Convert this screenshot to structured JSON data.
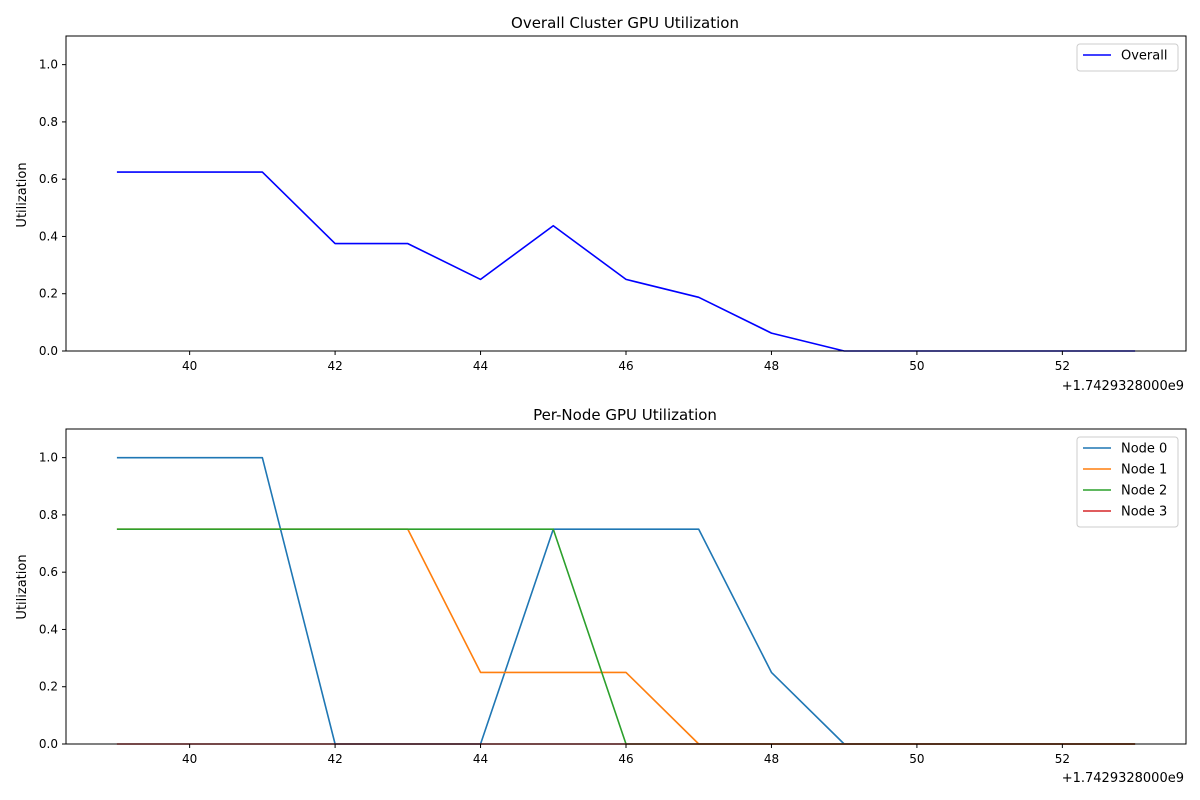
{
  "chart_data": [
    {
      "type": "line",
      "title": "Overall Cluster GPU Utilization",
      "xlabel": "",
      "ylabel": "Utilization",
      "x_offset_label": "+1.7429328000e9",
      "xlim": [
        38.3,
        53.7
      ],
      "ylim": [
        0,
        1.1
      ],
      "x_ticks": [
        40,
        42,
        44,
        46,
        48,
        50,
        52
      ],
      "y_ticks": [
        "0.0",
        "0.2",
        "0.4",
        "0.6",
        "0.8",
        "1.0"
      ],
      "legend_position": "top-right",
      "grid": false,
      "x": [
        39,
        40,
        41,
        42,
        43,
        44,
        45,
        46,
        47,
        48,
        49,
        50,
        51,
        52,
        53
      ],
      "series": [
        {
          "name": "Overall",
          "color": "#0000ff",
          "values": [
            0.625,
            0.625,
            0.625,
            0.375,
            0.375,
            0.25,
            0.4375,
            0.25,
            0.1875,
            0.0625,
            0,
            0,
            0,
            0,
            0
          ]
        }
      ]
    },
    {
      "type": "line",
      "title": "Per-Node GPU Utilization",
      "xlabel": "",
      "ylabel": "Utilization",
      "x_offset_label": "+1.7429328000e9",
      "xlim": [
        38.3,
        53.7
      ],
      "ylim": [
        0,
        1.1
      ],
      "x_ticks": [
        40,
        42,
        44,
        46,
        48,
        50,
        52
      ],
      "y_ticks": [
        "0.0",
        "0.2",
        "0.4",
        "0.6",
        "0.8",
        "1.0"
      ],
      "legend_position": "top-right",
      "grid": false,
      "x": [
        39,
        40,
        41,
        42,
        43,
        44,
        45,
        46,
        47,
        48,
        49,
        50,
        51,
        52,
        53
      ],
      "series": [
        {
          "name": "Node 0",
          "color": "#1f77b4",
          "values": [
            1.0,
            1.0,
            1.0,
            0,
            0,
            0,
            0.75,
            0.75,
            0.75,
            0.25,
            0,
            0,
            0,
            0,
            0
          ]
        },
        {
          "name": "Node 1",
          "color": "#ff7f0e",
          "values": [
            0.75,
            0.75,
            0.75,
            0.75,
            0.75,
            0.25,
            0.25,
            0.25,
            0,
            0,
            0,
            0,
            0,
            0,
            0
          ]
        },
        {
          "name": "Node 2",
          "color": "#2ca02c",
          "values": [
            0.75,
            0.75,
            0.75,
            0.75,
            0.75,
            0.75,
            0.75,
            0,
            0,
            0,
            0,
            0,
            0,
            0,
            0
          ]
        },
        {
          "name": "Node 3",
          "color": "#d62728",
          "values": [
            0,
            0,
            0,
            0,
            0,
            0,
            0,
            0,
            0,
            0,
            0,
            0,
            0,
            0,
            0
          ]
        }
      ]
    }
  ]
}
